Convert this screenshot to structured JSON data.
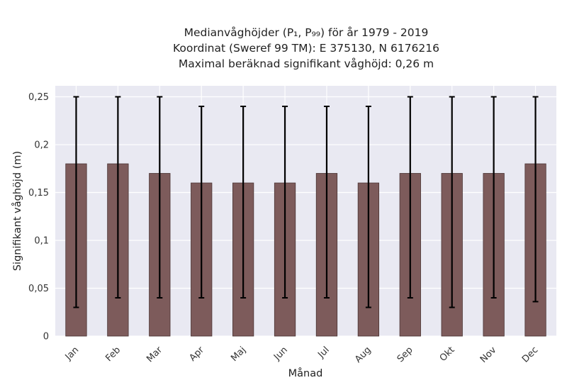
{
  "chart_data": {
    "type": "bar",
    "title_lines": [
      "Medianvåghöjder (P₁, P₉₉) för år 1979 - 2019",
      "Koordinat (Sweref 99 TM): E 375130, N 6176216",
      "Maximal beräknad signifikant våghöjd: 0,26 m"
    ],
    "xlabel": "Månad",
    "ylabel": "Signifikant våghöjd (m)",
    "categories": [
      "Jan",
      "Feb",
      "Mar",
      "Apr",
      "Maj",
      "Jun",
      "Jul",
      "Aug",
      "Sep",
      "Okt",
      "Nov",
      "Dec"
    ],
    "values": [
      0.18,
      0.18,
      0.17,
      0.16,
      0.16,
      0.16,
      0.17,
      0.16,
      0.17,
      0.17,
      0.17,
      0.18
    ],
    "p1": [
      0.03,
      0.04,
      0.04,
      0.04,
      0.04,
      0.04,
      0.04,
      0.03,
      0.04,
      0.03,
      0.04,
      0.036
    ],
    "p99": [
      0.25,
      0.25,
      0.25,
      0.24,
      0.24,
      0.24,
      0.24,
      0.24,
      0.25,
      0.25,
      0.25,
      0.25
    ],
    "ylim": [
      0,
      0.25
    ],
    "yticks": [
      0,
      0.05,
      0.1,
      0.15,
      0.2,
      0.25
    ],
    "ytick_labels": [
      "0",
      "0,05",
      "0,1",
      "0,15",
      "0,2",
      "0,25"
    ],
    "grid": true,
    "colors": {
      "bar_fill": "#7d5b5b",
      "bar_edge": "#4a3434",
      "plot_bg": "#e9e9f2",
      "grid": "#ffffff",
      "errorbar": "#000000"
    }
  }
}
